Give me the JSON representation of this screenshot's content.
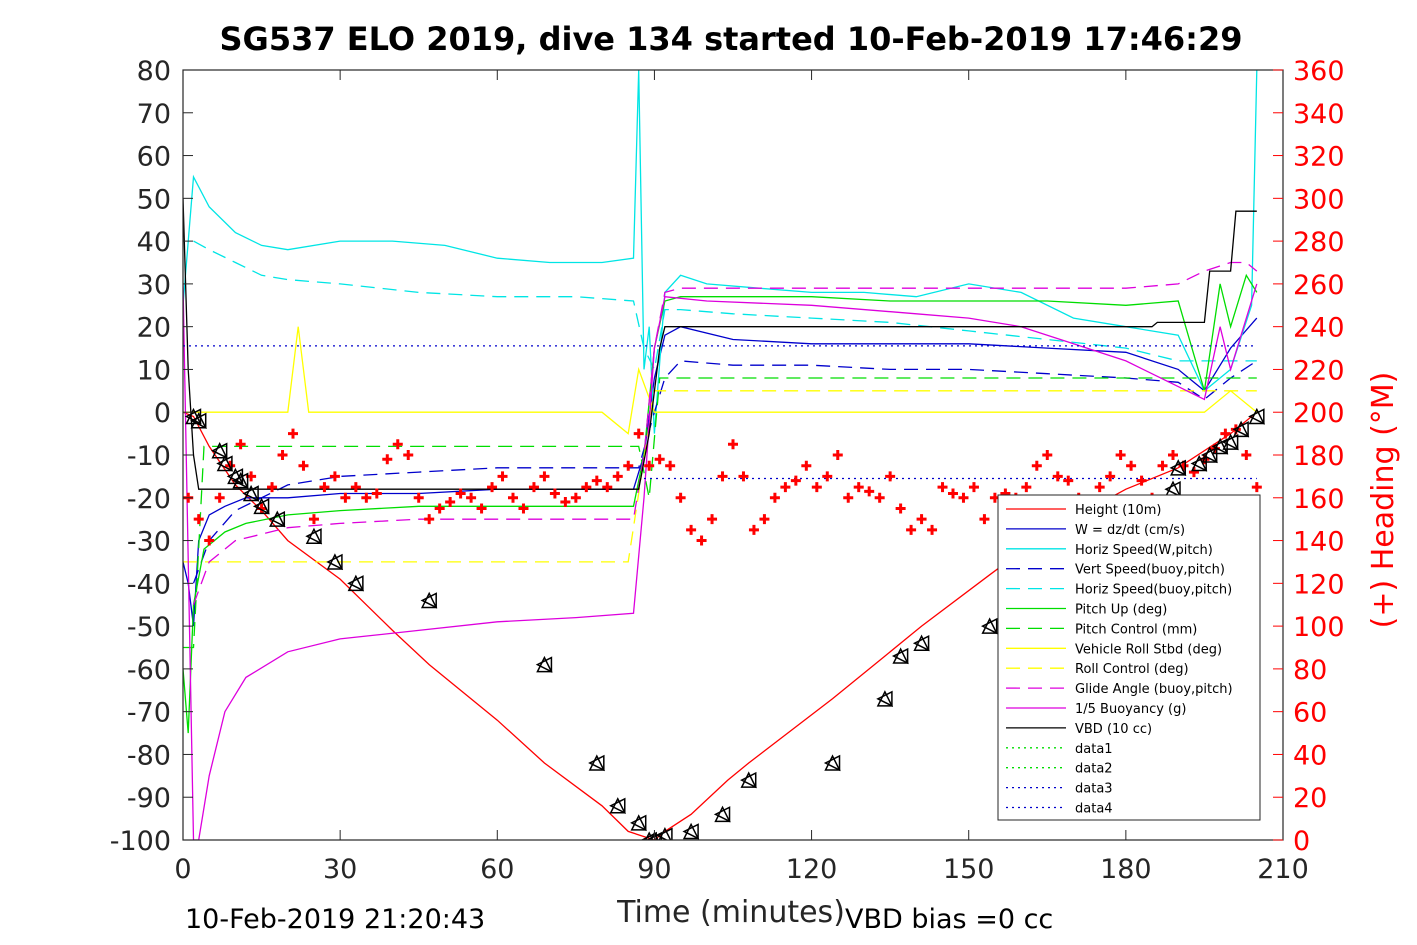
{
  "chart_data": {
    "type": "line",
    "title": "SG537 ELO 2019, dive 134 started 10-Feb-2019 17:46:29",
    "xlabel": "Time (minutes)",
    "ylabel_right": "(+) Heading (°M)",
    "xlim": [
      0,
      210
    ],
    "ylim": [
      -100,
      80
    ],
    "ylim_right": [
      0,
      360
    ],
    "x_ticks": [
      "0",
      "30",
      "60",
      "90",
      "120",
      "150",
      "180",
      "210"
    ],
    "y_ticks": [
      "80",
      "70",
      "60",
      "50",
      "40",
      "30",
      "20",
      "10",
      "0",
      "-10",
      "-20",
      "-30",
      "-40",
      "-50",
      "-60",
      "-70",
      "-80",
      "-90",
      "-100"
    ],
    "y_ticks_right": [
      "360",
      "340",
      "320",
      "300",
      "280",
      "260",
      "240",
      "220",
      "200",
      "180",
      "160",
      "140",
      "120",
      "100",
      "80",
      "60",
      "40",
      "20",
      "0"
    ],
    "grid": false,
    "legend_position": "bottom-right",
    "footer_left": "10-Feb-2019 21:20:43",
    "footer_right": "VBD bias =0 cc",
    "series": [
      {
        "name": "Height (10m)",
        "color": "#ff0000",
        "style": "solid",
        "x": [
          0,
          2,
          5,
          10,
          15,
          20,
          30,
          40,
          47,
          60,
          69,
          80,
          85,
          90,
          92,
          97,
          104,
          108,
          124,
          134,
          141,
          154,
          165,
          180,
          190,
          200,
          205
        ],
        "y": [
          0,
          -1,
          -8,
          -17,
          -23,
          -30,
          -39,
          -51,
          -59,
          -72,
          -82,
          -92,
          -98,
          -100,
          -98,
          -94,
          -86,
          -82,
          -67,
          -57,
          -50,
          -38,
          -28,
          -18,
          -13,
          -5,
          0
        ]
      },
      {
        "name": "W = dz/dt (cm/s)",
        "color": "#0000cc",
        "style": "solid",
        "x": [
          0,
          1,
          2,
          3,
          5,
          8,
          12,
          20,
          30,
          45,
          60,
          75,
          86,
          88,
          90,
          92,
          95,
          105,
          120,
          135,
          150,
          165,
          180,
          190,
          195,
          200,
          205
        ],
        "y": [
          -35,
          -40,
          -50,
          -30,
          -24,
          -22,
          -20,
          -20,
          -19,
          -19,
          -18,
          -18,
          -18,
          -10,
          8,
          18,
          20,
          17,
          16,
          16,
          16,
          15,
          14,
          10,
          5,
          15,
          22
        ]
      },
      {
        "name": "Horiz Speed(W,pitch)",
        "color": "#00e5e5",
        "style": "solid",
        "x": [
          0,
          2,
          5,
          10,
          15,
          20,
          30,
          40,
          50,
          60,
          70,
          80,
          86,
          87,
          88,
          89,
          90,
          92,
          95,
          100,
          110,
          120,
          130,
          140,
          150,
          160,
          170,
          180,
          190,
          195,
          200,
          204,
          205
        ],
        "y": [
          25,
          55,
          48,
          42,
          39,
          38,
          40,
          40,
          39,
          36,
          35,
          35,
          36,
          80,
          10,
          20,
          -5,
          28,
          32,
          30,
          29,
          28,
          28,
          27,
          30,
          28,
          22,
          20,
          18,
          5,
          10,
          25,
          80
        ]
      },
      {
        "name": "Vert Speed(buoy,pitch)",
        "color": "#0000cc",
        "style": "dashed",
        "x": [
          2,
          5,
          10,
          20,
          30,
          45,
          60,
          75,
          87,
          90,
          92,
          95,
          105,
          120,
          135,
          150,
          165,
          180,
          190,
          195,
          200,
          205
        ],
        "y": [
          -40,
          -30,
          -23,
          -17,
          -15,
          -14,
          -13,
          -13,
          -13,
          0,
          8,
          12,
          11,
          11,
          10,
          10,
          9,
          8,
          7,
          3,
          8,
          12
        ]
      },
      {
        "name": "Horiz Speed(buoy,pitch)",
        "color": "#00e5e5",
        "style": "dashed",
        "x": [
          2,
          5,
          10,
          15,
          20,
          30,
          45,
          60,
          75,
          86,
          88,
          90,
          92,
          95,
          105,
          120,
          135,
          150,
          165,
          180,
          190,
          200,
          205
        ],
        "y": [
          40,
          38,
          35,
          32,
          31,
          30,
          28,
          27,
          27,
          26,
          15,
          10,
          24,
          24,
          23,
          22,
          21,
          19,
          17,
          15,
          12,
          12,
          12
        ]
      },
      {
        "name": "Pitch Up (deg)",
        "color": "#00dd00",
        "style": "solid",
        "x": [
          0,
          1,
          2,
          4,
          8,
          12,
          20,
          30,
          45,
          60,
          75,
          86,
          88,
          90,
          92,
          95,
          105,
          120,
          135,
          150,
          165,
          180,
          190,
          195,
          198,
          200,
          203,
          205
        ],
        "y": [
          -60,
          -75,
          -45,
          -32,
          -28,
          -26,
          -24,
          -23,
          -22,
          -22,
          -22,
          -22,
          -10,
          15,
          26,
          27,
          27,
          27,
          26,
          26,
          26,
          25,
          26,
          5,
          30,
          20,
          32,
          28
        ]
      },
      {
        "name": "Pitch Control (mm)",
        "color": "#00dd00",
        "style": "dashed",
        "x": [
          0,
          2,
          4,
          8,
          30,
          60,
          87,
          89,
          91,
          93,
          120,
          150,
          180,
          195,
          200,
          205
        ],
        "y": [
          -55,
          -55,
          -8,
          -8,
          -8,
          -8,
          -8,
          -20,
          8,
          8,
          8,
          8,
          8,
          8,
          8,
          8
        ]
      },
      {
        "name": "Vehicle Roll Stbd (deg)",
        "color": "#ffff00",
        "style": "solid",
        "x": [
          0,
          5,
          10,
          15,
          20,
          22,
          24,
          30,
          35,
          40,
          45,
          50,
          60,
          70,
          75,
          80,
          85,
          87,
          90,
          95,
          100,
          110,
          120,
          130,
          140,
          150,
          160,
          170,
          180,
          190,
          195,
          200,
          205
        ],
        "y": [
          0,
          0,
          0,
          0,
          0,
          20,
          0,
          0,
          0,
          0,
          0,
          0,
          0,
          0,
          0,
          0,
          -5,
          10,
          0,
          0,
          0,
          0,
          0,
          0,
          0,
          0,
          0,
          0,
          0,
          0,
          0,
          5,
          0
        ]
      },
      {
        "name": "Roll Control (deg)",
        "color": "#ffff00",
        "style": "dashed",
        "x": [
          0,
          30,
          60,
          85,
          90,
          120,
          150,
          180,
          205
        ],
        "y": [
          -35,
          -35,
          -35,
          -35,
          5,
          5,
          5,
          5,
          5
        ]
      },
      {
        "name": "Glide Angle (buoy,pitch)",
        "color": "#dd00dd",
        "style": "dashed",
        "x": [
          2,
          5,
          10,
          20,
          30,
          45,
          60,
          75,
          86,
          88,
          90,
          92,
          95,
          105,
          120,
          135,
          150,
          165,
          180,
          190,
          195,
          200,
          203,
          205
        ],
        "y": [
          -45,
          -35,
          -30,
          -27,
          -26,
          -25,
          -25,
          -25,
          -25,
          -10,
          15,
          28,
          29,
          29,
          29,
          29,
          29,
          29,
          29,
          30,
          33,
          35,
          35,
          33
        ]
      },
      {
        "name": "1/5 Buoyancy (g)",
        "color": "#dd00dd",
        "style": "solid",
        "x": [
          0,
          2,
          3,
          5,
          8,
          12,
          20,
          30,
          45,
          60,
          75,
          86,
          88,
          90,
          92,
          100,
          120,
          140,
          150,
          160,
          170,
          180,
          190,
          195,
          198,
          200,
          205
        ],
        "y": [
          30,
          -100,
          -100,
          -85,
          -70,
          -62,
          -56,
          -53,
          -51,
          -49,
          -48,
          -47,
          -20,
          15,
          27,
          26,
          25,
          23,
          22,
          20,
          16,
          12,
          6,
          3,
          20,
          10,
          30
        ]
      },
      {
        "name": "VBD (10 cc)",
        "color": "#000000",
        "style": "solid",
        "x": [
          0,
          1,
          2,
          3,
          85,
          87,
          89,
          91,
          92,
          185,
          186,
          195,
          196,
          200,
          201,
          205
        ],
        "y": [
          50,
          10,
          -10,
          -18,
          -18,
          -18,
          -5,
          15,
          20,
          20,
          21,
          21,
          33,
          33,
          47,
          47
        ]
      },
      {
        "name": "data1",
        "color": "#00dd00",
        "style": "dotted",
        "x": [],
        "y": []
      },
      {
        "name": "data2",
        "color": "#00dd00",
        "style": "dotted",
        "x": [],
        "y": []
      },
      {
        "name": "data3",
        "color": "#0000cc",
        "style": "dotted",
        "x": [
          0,
          205
        ],
        "y": [
          15.5,
          15.5
        ]
      },
      {
        "name": "data4",
        "color": "#0000cc",
        "style": "dotted",
        "x": [
          88,
          205
        ],
        "y": [
          -15.5,
          -15.5
        ]
      }
    ],
    "heading_series": {
      "name": "Heading",
      "color": "#ff0000",
      "marker": "+",
      "axis": "right",
      "x": [
        1,
        3,
        5,
        7,
        9,
        11,
        13,
        15,
        17,
        19,
        21,
        23,
        25,
        27,
        29,
        31,
        33,
        35,
        37,
        39,
        41,
        43,
        45,
        47,
        49,
        51,
        53,
        55,
        57,
        59,
        61,
        63,
        65,
        67,
        69,
        71,
        73,
        75,
        77,
        79,
        81,
        83,
        85,
        87,
        89,
        91,
        93,
        95,
        97,
        99,
        101,
        103,
        105,
        107,
        109,
        111,
        113,
        115,
        117,
        119,
        121,
        123,
        125,
        127,
        129,
        131,
        133,
        135,
        137,
        139,
        141,
        143,
        145,
        147,
        149,
        151,
        153,
        155,
        157,
        159,
        161,
        163,
        165,
        167,
        169,
        171,
        173,
        175,
        177,
        179,
        181,
        183,
        185,
        187,
        189,
        191,
        193,
        195,
        197,
        199,
        201,
        203,
        205
      ],
      "y": [
        160,
        150,
        140,
        160,
        175,
        185,
        170,
        155,
        165,
        180,
        190,
        175,
        150,
        165,
        170,
        160,
        165,
        160,
        162,
        178,
        185,
        180,
        160,
        150,
        155,
        158,
        162,
        160,
        155,
        165,
        170,
        160,
        155,
        165,
        170,
        162,
        158,
        160,
        165,
        168,
        165,
        170,
        175,
        190,
        175,
        178,
        175,
        160,
        145,
        140,
        150,
        170,
        185,
        170,
        145,
        150,
        160,
        165,
        168,
        175,
        165,
        170,
        180,
        160,
        165,
        163,
        160,
        170,
        155,
        145,
        150,
        145,
        165,
        162,
        160,
        165,
        150,
        160,
        162,
        160,
        165,
        175,
        180,
        170,
        168,
        160,
        158,
        165,
        170,
        180,
        175,
        168,
        160,
        175,
        180,
        175,
        172,
        178,
        183,
        190,
        192,
        180,
        165
      ]
    },
    "markers": {
      "name": "Height markers",
      "color": "#000000",
      "symbols": [
        "triangle-left",
        "triangle-up"
      ],
      "x": [
        2,
        3,
        7,
        8,
        10,
        11,
        13,
        15,
        18,
        25,
        29,
        33,
        47,
        69,
        79,
        83,
        87,
        89,
        90,
        92,
        97,
        103,
        108,
        124,
        134,
        137,
        141,
        154,
        180,
        189,
        190,
        194,
        196,
        198,
        200,
        202,
        205
      ],
      "y": [
        -1,
        -2,
        -9,
        -12,
        -15,
        -16,
        -19,
        -22,
        -25,
        -29,
        -35,
        -40,
        -44,
        -59,
        -82,
        -92,
        -96,
        -100,
        -100,
        -99,
        -98,
        -94,
        -86,
        -82,
        -67,
        -57,
        -54,
        -50,
        -38,
        -18,
        -13,
        -12,
        -10,
        -8,
        -7,
        -4,
        -1
      ]
    },
    "legend_entries": [
      "Height (10m)",
      "W = dz/dt (cm/s)",
      "Horiz Speed(W,pitch)",
      "Vert Speed(buoy,pitch)",
      "Horiz Speed(buoy,pitch)",
      "Pitch Up (deg)",
      "Pitch Control (mm)",
      "Vehicle Roll Stbd (deg)",
      "Roll Control (deg)",
      "Glide Angle (buoy,pitch)",
      "1/5 Buoyancy (g)",
      "VBD (10 cc)",
      "data1",
      "data2",
      "data3",
      "data4"
    ]
  }
}
